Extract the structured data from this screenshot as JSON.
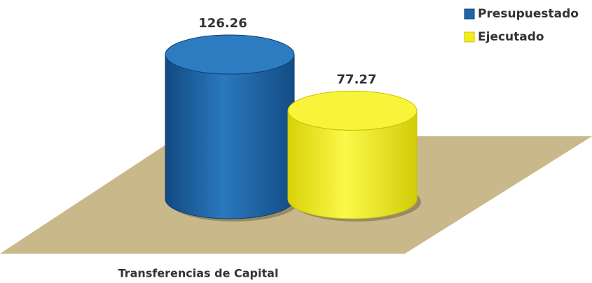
{
  "chart_data": {
    "type": "cylinder",
    "categories": [
      "Transferencias de Capital"
    ],
    "series": [
      {
        "name": "Presupuestado",
        "color": "#1f66a8",
        "values": [
          126.26
        ]
      },
      {
        "name": "Ejecutado",
        "color": "#f2ee1e",
        "values": [
          77.27
        ]
      }
    ]
  }
}
